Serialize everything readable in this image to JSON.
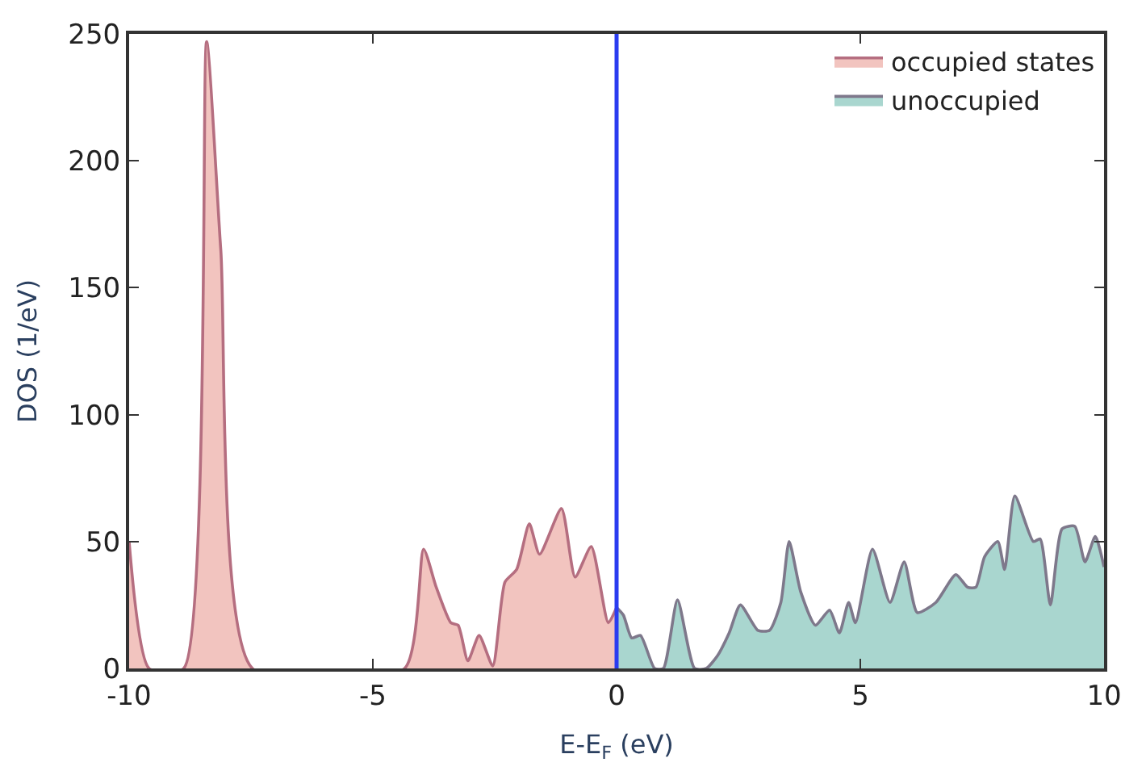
{
  "chart_data": {
    "type": "area",
    "xlabel": "E-E$_{F}$ (eV)",
    "ylabel": "DOS (1/eV)",
    "xlim": [
      -10,
      10
    ],
    "xticks": [
      -10,
      -5,
      0,
      5,
      10
    ],
    "ylim": [
      0,
      250
    ],
    "yticks": [
      0,
      50,
      100,
      150,
      200,
      250
    ],
    "legend": "top right",
    "series": [
      {
        "name": "occupied states",
        "color": "#f2c4bf",
        "x": [
          -10,
          -9.59,
          -8.88,
          -8.41,
          -8.12,
          -7.47,
          -4.35,
          -3.96,
          -3.7,
          -3.4,
          -3.25,
          -3.05,
          -2.82,
          -2.54,
          -2.29,
          -2.05,
          -1.79,
          -1.58,
          -1.13,
          -0.85,
          -0.52,
          -0.17,
          0
        ],
        "values": [
          50,
          0,
          0,
          247,
          165,
          0,
          0,
          47,
          32,
          18,
          17,
          3,
          13,
          1,
          34,
          39,
          57,
          45,
          63,
          36,
          48,
          18,
          24
        ]
      },
      {
        "name": "unoccupied",
        "color": "#a9d6cf",
        "x": [
          0,
          0.14,
          0.31,
          0.49,
          0.78,
          0.96,
          1.25,
          1.6,
          1.84,
          2.07,
          2.31,
          2.54,
          2.9,
          3.14,
          3.37,
          3.54,
          3.78,
          4.08,
          4.37,
          4.57,
          4.76,
          4.9,
          5.25,
          5.61,
          5.9,
          6.17,
          6.55,
          6.96,
          7.2,
          7.37,
          7.55,
          7.82,
          7.96,
          8.17,
          8.55,
          8.69,
          8.9,
          9.14,
          9.4,
          9.61,
          9.82,
          10
        ],
        "values": [
          24,
          21,
          12,
          13,
          0,
          0,
          27,
          0,
          0,
          5,
          14,
          25,
          15,
          15,
          26,
          50,
          30,
          17,
          23,
          14,
          26,
          18,
          47,
          26,
          42,
          22,
          26,
          37,
          32,
          32,
          44,
          50,
          39,
          68,
          50,
          51,
          25,
          55,
          56,
          42,
          52,
          40
        ]
      }
    ],
    "ref_lines": [
      {
        "axis": "x",
        "value": 0,
        "color": "#2a3cf0"
      }
    ]
  }
}
